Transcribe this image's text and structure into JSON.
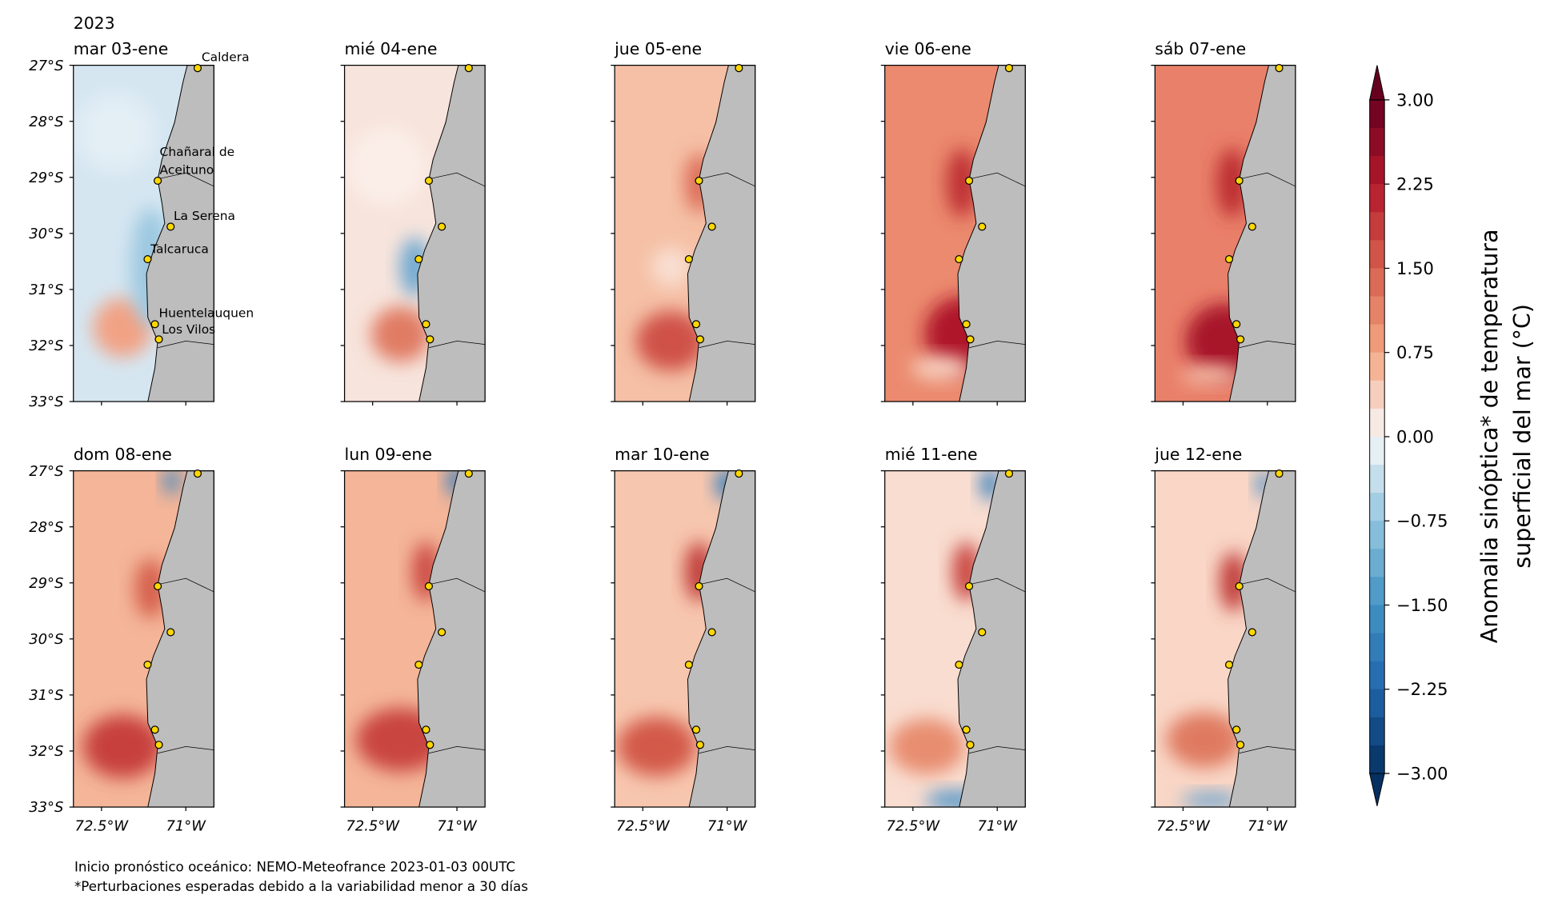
{
  "year": "2023",
  "panels": [
    {
      "title": "mar 03-ene"
    },
    {
      "title": "mié 04-ene"
    },
    {
      "title": "jue 05-ene"
    },
    {
      "title": "vie 06-ene"
    },
    {
      "title": "sáb 07-ene"
    },
    {
      "title": "dom 08-ene"
    },
    {
      "title": "lun 09-ene"
    },
    {
      "title": "mar 10-ene"
    },
    {
      "title": "mié 11-ene"
    },
    {
      "title": "jue 12-ene"
    }
  ],
  "map": {
    "xlim": [
      -73,
      -70.5
    ],
    "ylim": [
      -33,
      -27
    ],
    "xticks": [
      {
        "value": -72.5,
        "label": "72.5°W"
      },
      {
        "value": -71,
        "label": "71°W"
      }
    ],
    "yticks": [
      {
        "value": -27,
        "label": "27°S"
      },
      {
        "value": -28,
        "label": "28°S"
      },
      {
        "value": -29,
        "label": "29°S"
      },
      {
        "value": -30,
        "label": "30°S"
      },
      {
        "value": -31,
        "label": "31°S"
      },
      {
        "value": -32,
        "label": "32°S"
      },
      {
        "value": -33,
        "label": "33°S"
      }
    ],
    "cities": [
      {
        "label": [
          "Caldera"
        ],
        "lon": -70.79,
        "lat": -27.05
      },
      {
        "label": [
          "Chañaral de",
          "Aceituno"
        ],
        "lon": -71.5,
        "lat": -29.06
      },
      {
        "label": [
          "La Serena"
        ],
        "lon": -71.27,
        "lat": -29.88
      },
      {
        "label": [
          "Talcaruca"
        ],
        "lon": -71.68,
        "lat": -30.46
      },
      {
        "label": [
          "Huentelauquen"
        ],
        "lon": -71.55,
        "lat": -31.62
      },
      {
        "label": [
          "Los Vilos"
        ],
        "lon": -71.48,
        "lat": -31.89
      }
    ]
  },
  "colorbar": {
    "label": [
      "Anomalia sinóptica* de temperatura",
      "superficial del mar (°C)"
    ],
    "lim": [
      -3,
      3
    ],
    "ticks": [
      {
        "value": 3,
        "label": "3.00"
      },
      {
        "value": 2.25,
        "label": "2.25"
      },
      {
        "value": 1.5,
        "label": "1.50"
      },
      {
        "value": 0.75,
        "label": "0.75"
      },
      {
        "value": 0,
        "label": "0.00"
      },
      {
        "value": -0.75,
        "label": "−0.75"
      },
      {
        "value": -1.5,
        "label": "−1.50"
      },
      {
        "value": -2.25,
        "label": "−2.25"
      },
      {
        "value": -3,
        "label": "−3.00"
      }
    ]
  },
  "footer": [
    "Inicio pronóstico oceánico: NEMO-Meteofrance 2023-01-03 00UTC",
    "*Perturbaciones esperadas debido a la variabilidad menor a 30 días"
  ]
}
